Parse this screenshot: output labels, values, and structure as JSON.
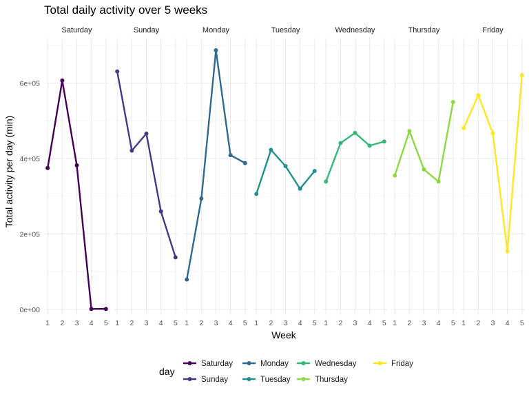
{
  "chart_data": {
    "type": "line",
    "title": "Total daily activity over 5 weeks",
    "xlabel": "Week",
    "ylabel": "Total activity per day (min)",
    "x": [
      1,
      2,
      3,
      4,
      5
    ],
    "xtick_labels": [
      "1",
      "2",
      "3",
      "4",
      "5"
    ],
    "ylim": [
      -15000,
      720000
    ],
    "yticks": [
      0,
      200000,
      400000,
      600000
    ],
    "ytick_labels": [
      "0e+00",
      "2e+05",
      "4e+05",
      "6e+05"
    ],
    "grid": true,
    "legend": {
      "title": "day",
      "position": "bottom"
    },
    "series": [
      {
        "name": "Saturday",
        "color": "#440154",
        "values": [
          375000,
          607000,
          382000,
          1000,
          1000
        ]
      },
      {
        "name": "Sunday",
        "color": "#443A83",
        "values": [
          631000,
          421000,
          466000,
          260000,
          138000
        ]
      },
      {
        "name": "Monday",
        "color": "#31688E",
        "values": [
          79000,
          294000,
          687000,
          409000,
          388000
        ]
      },
      {
        "name": "Tuesday",
        "color": "#21908C",
        "values": [
          306000,
          423000,
          380000,
          320000,
          367000
        ]
      },
      {
        "name": "Wednesday",
        "color": "#35B779",
        "values": [
          339000,
          441000,
          468000,
          434000,
          445000
        ]
      },
      {
        "name": "Thursday",
        "color": "#8FD744",
        "values": [
          355000,
          473000,
          371000,
          339000,
          550000
        ]
      },
      {
        "name": "Friday",
        "color": "#FDE725",
        "values": [
          481000,
          568000,
          467000,
          154000,
          621000
        ]
      }
    ]
  }
}
